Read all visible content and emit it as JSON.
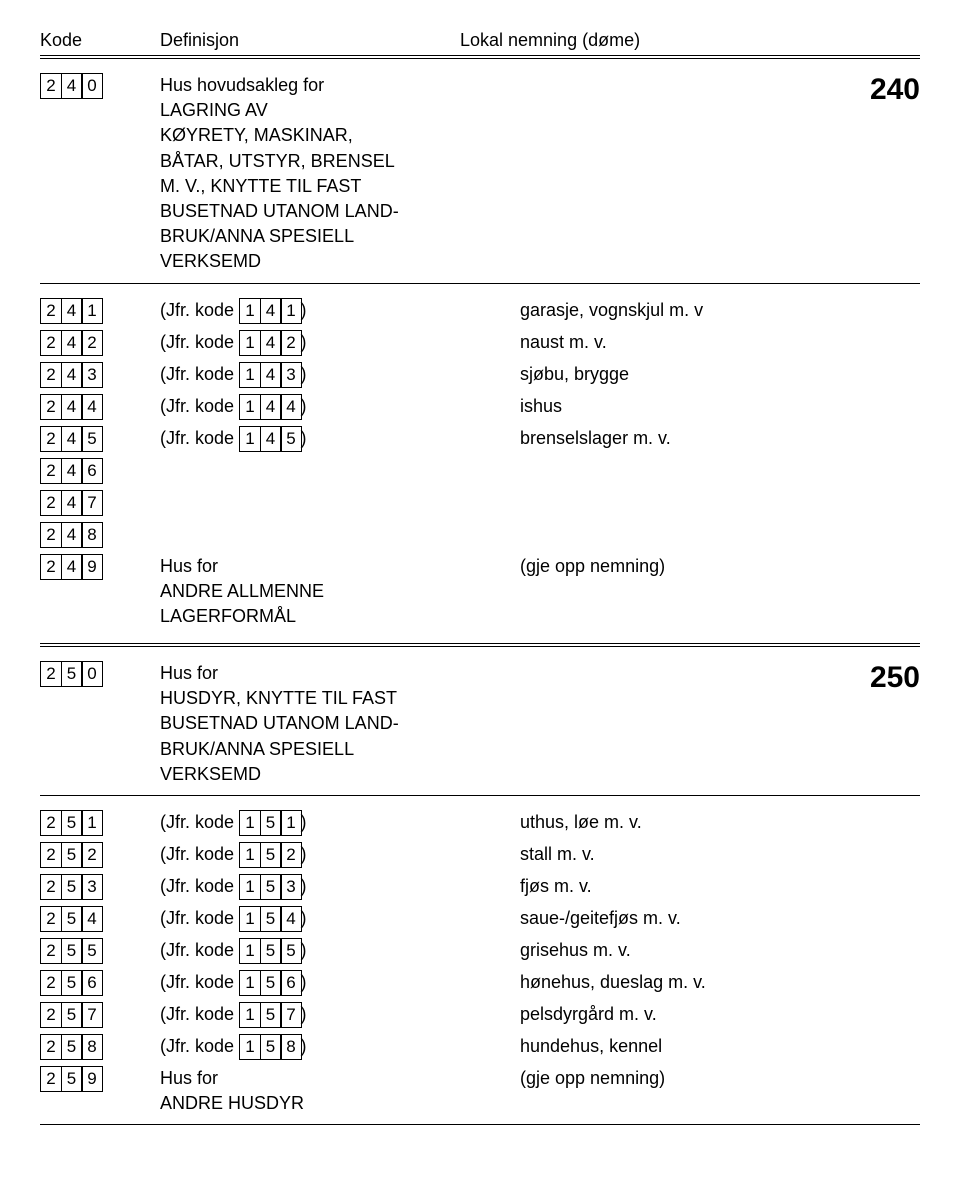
{
  "header": {
    "kode": "Kode",
    "definisjon": "Definisjon",
    "lokal": "Lokal nemning (døme)"
  },
  "sec240": {
    "header": {
      "code": [
        "2",
        "4",
        "0"
      ],
      "def": "Hus hovudsakleg for\nLAGRING AV\nKØYRETY, MASKINAR,\nBÅTAR, UTSTYR, BRENSEL\nM. V., KNYTTE TIL FAST\nBUSETNAD UTANOM LAND-\nBRUK/ANNA SPESIELL\nVERKSEMD",
      "big": "240"
    },
    "rows": [
      {
        "code": [
          "2",
          "4",
          "1"
        ],
        "ref": [
          "1",
          "4",
          "1"
        ],
        "lokal": "garasje, vognskjul m. v"
      },
      {
        "code": [
          "2",
          "4",
          "2"
        ],
        "ref": [
          "1",
          "4",
          "2"
        ],
        "lokal": "naust m. v."
      },
      {
        "code": [
          "2",
          "4",
          "3"
        ],
        "ref": [
          "1",
          "4",
          "3"
        ],
        "lokal": "sjøbu, brygge"
      },
      {
        "code": [
          "2",
          "4",
          "4"
        ],
        "ref": [
          "1",
          "4",
          "4"
        ],
        "lokal": "ishus"
      },
      {
        "code": [
          "2",
          "4",
          "5"
        ],
        "ref": [
          "1",
          "4",
          "5"
        ],
        "lokal": "brenselslager m. v."
      },
      {
        "code": [
          "2",
          "4",
          "6"
        ],
        "ref": null,
        "lokal": ""
      },
      {
        "code": [
          "2",
          "4",
          "7"
        ],
        "ref": null,
        "lokal": ""
      },
      {
        "code": [
          "2",
          "4",
          "8"
        ],
        "ref": null,
        "lokal": ""
      },
      {
        "code": [
          "2",
          "4",
          "9"
        ],
        "ref": null,
        "def": "Hus for\nANDRE ALLMENNE\nLAGERFORMÅL",
        "lokal": "(gje opp nemning)"
      }
    ]
  },
  "sec250": {
    "header": {
      "code": [
        "2",
        "5",
        "0"
      ],
      "def": "Hus for\nHUSDYR, KNYTTE TIL FAST\nBUSETNAD UTANOM LAND-\nBRUK/ANNA SPESIELL\nVERKSEMD",
      "big": "250"
    },
    "rows": [
      {
        "code": [
          "2",
          "5",
          "1"
        ],
        "ref": [
          "1",
          "5",
          "1"
        ],
        "lokal": "uthus, løe m. v."
      },
      {
        "code": [
          "2",
          "5",
          "2"
        ],
        "ref": [
          "1",
          "5",
          "2"
        ],
        "lokal": "stall m. v."
      },
      {
        "code": [
          "2",
          "5",
          "3"
        ],
        "ref": [
          "1",
          "5",
          "3"
        ],
        "lokal": "fjøs m. v."
      },
      {
        "code": [
          "2",
          "5",
          "4"
        ],
        "ref": [
          "1",
          "5",
          "4"
        ],
        "lokal": "saue-/geitefjøs m. v."
      },
      {
        "code": [
          "2",
          "5",
          "5"
        ],
        "ref": [
          "1",
          "5",
          "5"
        ],
        "lokal": "grisehus m. v."
      },
      {
        "code": [
          "2",
          "5",
          "6"
        ],
        "ref": [
          "1",
          "5",
          "6"
        ],
        "lokal": "hønehus, dueslag m. v."
      },
      {
        "code": [
          "2",
          "5",
          "7"
        ],
        "ref": [
          "1",
          "5",
          "7"
        ],
        "lokal": "pelsdyrgård m. v."
      },
      {
        "code": [
          "2",
          "5",
          "8"
        ],
        "ref": [
          "1",
          "5",
          "8"
        ],
        "lokal": "hundehus, kennel"
      },
      {
        "code": [
          "2",
          "5",
          "9"
        ],
        "ref": null,
        "def": "Hus for\nANDRE HUSDYR",
        "lokal": "(gje opp nemning)"
      }
    ]
  },
  "jfr_prefix": "(Jfr. kode ",
  "jfr_suffix": ")"
}
